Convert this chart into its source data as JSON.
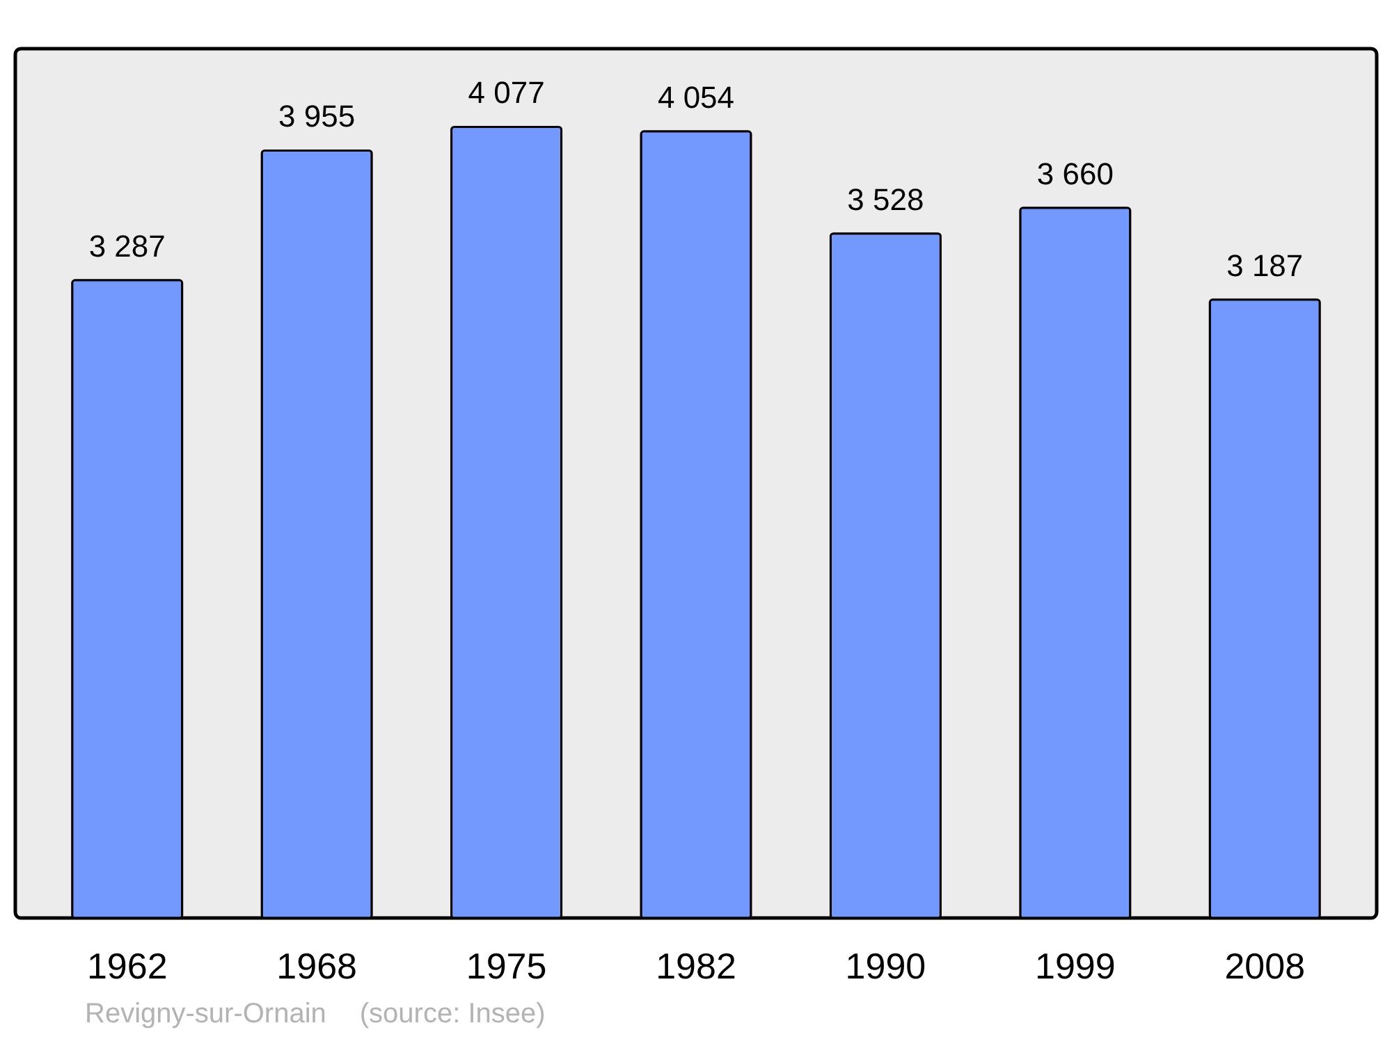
{
  "chart_data": {
    "type": "bar",
    "categories": [
      "1962",
      "1968",
      "1975",
      "1982",
      "1990",
      "1999",
      "2008"
    ],
    "values": [
      3287,
      3955,
      4077,
      4054,
      3528,
      3660,
      3187
    ],
    "value_labels": [
      "3 287",
      "3 955",
      "4 077",
      "4 054",
      "3 528",
      "3 660",
      "3 187"
    ],
    "color": "#7399ff",
    "ylim": [
      0,
      4480
    ],
    "grid": false,
    "annotations": [
      "Revigny-sur-Ornain",
      "(source: Insee)"
    ]
  }
}
